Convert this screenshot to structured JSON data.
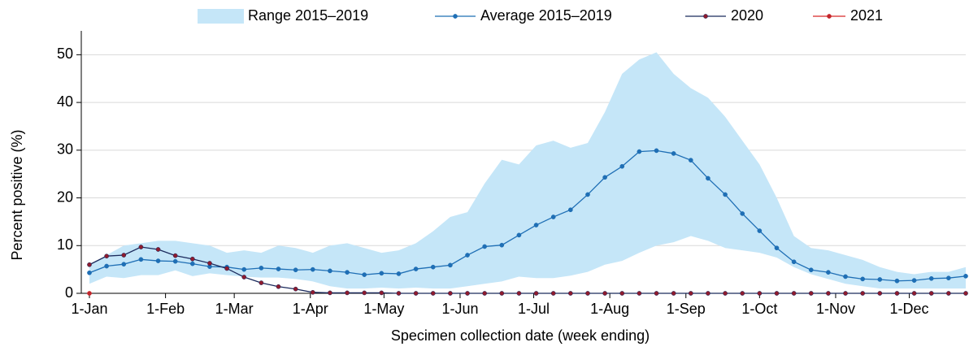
{
  "chart_data": {
    "type": "line",
    "x_label": "Specimen collection date (week ending)",
    "y_label": "Percent positive (%)",
    "x": [
      0,
      7,
      14,
      21,
      28,
      35,
      42,
      49,
      56,
      63,
      70,
      77,
      84,
      91,
      98,
      105,
      112,
      119,
      126,
      133,
      140,
      147,
      154,
      161,
      168,
      175,
      182,
      189,
      196,
      203,
      210,
      217,
      224,
      231,
      238,
      245,
      252,
      259,
      266,
      273,
      280,
      287,
      294,
      301,
      308,
      315,
      322,
      329,
      336,
      343,
      350,
      357
    ],
    "xlim": [
      0,
      357
    ],
    "xticks": [
      {
        "value": 0,
        "label": "1-Jan"
      },
      {
        "value": 31,
        "label": "1-Feb"
      },
      {
        "value": 59,
        "label": "1-Mar"
      },
      {
        "value": 90,
        "label": "1-Apr"
      },
      {
        "value": 120,
        "label": "1-May"
      },
      {
        "value": 151,
        "label": "1-Jun"
      },
      {
        "value": 181,
        "label": "1-Jul"
      },
      {
        "value": 212,
        "label": "1-Aug"
      },
      {
        "value": 243,
        "label": "1-Sep"
      },
      {
        "value": 273,
        "label": "1-Oct"
      },
      {
        "value": 304,
        "label": "1-Nov"
      },
      {
        "value": 334,
        "label": "1-Dec"
      }
    ],
    "ylim": [
      0,
      55
    ],
    "yticks": [
      0,
      10,
      20,
      30,
      40,
      50
    ],
    "grid": true,
    "series": [
      {
        "name": "Range 2015–2019",
        "kind": "band",
        "color": "#c5e6f8",
        "upper": [
          6,
          8,
          10,
          10.5,
          11,
          11,
          10.5,
          10,
          8.5,
          9,
          8.5,
          10,
          9.5,
          8.5,
          10,
          10.5,
          9.5,
          8.5,
          9,
          10.5,
          13,
          16,
          17,
          23,
          28,
          27,
          31,
          32,
          30.5,
          31.5,
          38,
          46,
          49,
          50.5,
          46,
          43,
          41,
          37,
          32,
          27,
          20,
          12,
          9.5,
          9,
          8,
          7,
          5.5,
          4.5,
          4,
          4.5,
          4.5,
          5.5
        ],
        "lower": [
          2,
          3.5,
          3.2,
          3.8,
          3.8,
          4.8,
          3.6,
          4.2,
          3.8,
          3.5,
          3.3,
          3.3,
          3,
          2.5,
          1.5,
          1,
          1,
          1.2,
          1,
          1.2,
          1,
          1,
          1.5,
          2,
          2.5,
          3.5,
          3.2,
          3.2,
          3.7,
          4.5,
          6,
          6.8,
          8.5,
          10,
          10.7,
          12,
          11,
          9.5,
          9,
          8.5,
          7.5,
          5.5,
          4,
          3,
          2,
          1.5,
          1,
          1,
          1,
          1,
          1,
          1
        ]
      },
      {
        "name": "Average 2015–2019",
        "kind": "line",
        "color": "#1f6fb5",
        "marker_color": "#1f6fb5",
        "values": [
          4.3,
          5.7,
          6.1,
          7.1,
          6.8,
          6.7,
          6.2,
          5.6,
          5.5,
          5.0,
          5.3,
          5.1,
          4.9,
          5.0,
          4.7,
          4.4,
          3.9,
          4.2,
          4.1,
          5.1,
          5.5,
          5.9,
          8.0,
          9.8,
          10.1,
          12.2,
          14.3,
          16.0,
          17.5,
          20.7,
          24.3,
          26.6,
          29.7,
          29.9,
          29.3,
          27.9,
          24.1,
          20.7,
          16.7,
          13.1,
          9.5,
          6.6,
          4.9,
          4.4,
          3.5,
          3.0,
          2.9,
          2.6,
          2.7,
          3.1,
          3.2,
          3.6
        ]
      },
      {
        "name": "2020",
        "kind": "line",
        "color": "#1b2a5c",
        "marker_color": "#8e1b2e",
        "values": [
          6.0,
          7.8,
          8.0,
          9.7,
          9.2,
          7.9,
          7.2,
          6.3,
          5.2,
          3.4,
          2.2,
          1.4,
          0.9,
          0.2,
          0.1,
          0.1,
          0.1,
          0.1,
          0,
          0,
          0,
          0,
          0,
          0,
          0,
          0,
          0,
          0,
          0,
          0,
          0,
          0,
          0,
          0,
          0,
          0,
          0,
          0,
          0,
          0,
          0,
          0,
          0,
          0,
          0,
          0,
          0,
          0,
          0,
          0,
          0,
          0
        ]
      },
      {
        "name": "2021",
        "kind": "line",
        "color": "#d62728",
        "marker_color": "#c0262d",
        "values": [
          0,
          null,
          null,
          null,
          null,
          null,
          null,
          null,
          null,
          null,
          null,
          null,
          null,
          null,
          null,
          null,
          null,
          null,
          null,
          null,
          null,
          null,
          null,
          null,
          null,
          null,
          null,
          null,
          null,
          null,
          null,
          null,
          null,
          null,
          null,
          null,
          null,
          null,
          null,
          null,
          null,
          null,
          null,
          null,
          null,
          null,
          null,
          null,
          null,
          null,
          null,
          null
        ]
      }
    ]
  }
}
